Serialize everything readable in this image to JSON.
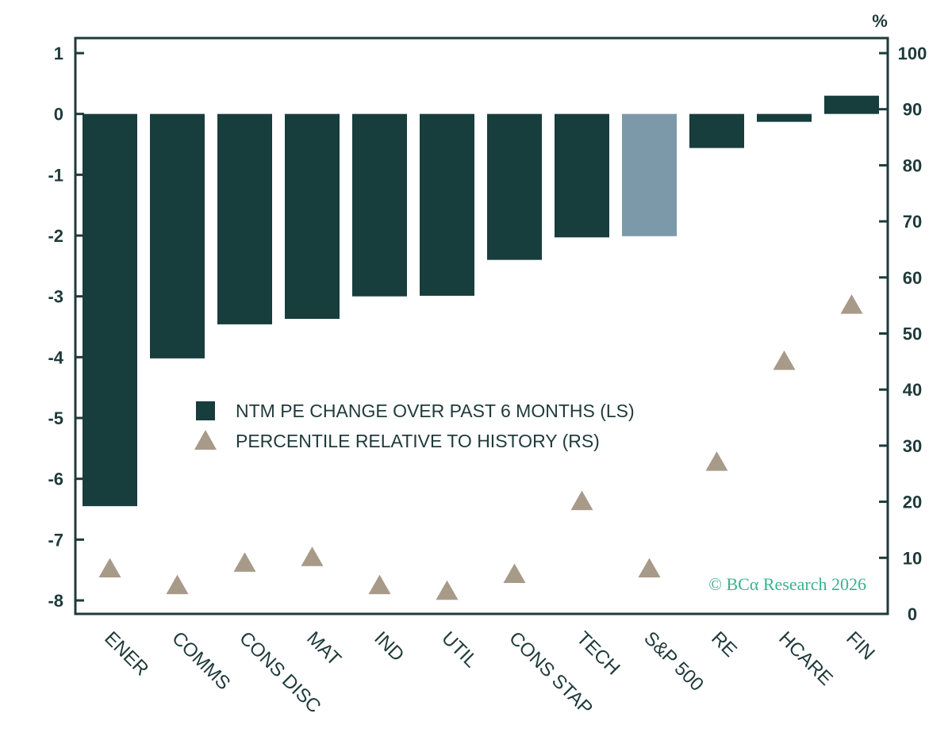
{
  "chart_data": {
    "type": "bar",
    "categories": [
      "ENER",
      "COMMS",
      "CONS DISC",
      "MAT",
      "IND",
      "UTIL",
      "CONS STAP",
      "TECH",
      "S&P 500",
      "RE",
      "HCARE",
      "FIN"
    ],
    "series": [
      {
        "name": "NTM PE CHANGE OVER PAST 6 MONTHS (LS)",
        "type": "bar",
        "axis": "left",
        "values": [
          -6.45,
          -4.02,
          -3.46,
          -3.37,
          -3.0,
          -2.99,
          -2.4,
          -2.03,
          -2.01,
          -0.56,
          -0.13,
          0.3
        ]
      },
      {
        "name": "PERCENTILE RELATIVE TO HISTORY (RS)",
        "type": "scatter",
        "marker": "triangle",
        "axis": "right",
        "values": [
          8,
          5,
          9,
          10,
          5,
          4,
          7,
          20,
          8,
          27,
          45,
          55
        ]
      }
    ],
    "left_axis": {
      "ylim": [
        -8,
        1
      ],
      "ticks": [
        "1",
        "0",
        "-1",
        "-2",
        "-3",
        "-4",
        "-5",
        "-6",
        "-7",
        "-8"
      ]
    },
    "right_axis": {
      "ylim": [
        0,
        100
      ],
      "unit": "%",
      "ticks": [
        "100",
        "90",
        "80",
        "70",
        "60",
        "50",
        "40",
        "30",
        "20",
        "10",
        "0"
      ]
    },
    "highlight_category": "S&P 500",
    "colors": {
      "bar": "#173d3d",
      "bar_highlight": "#7b99a9",
      "marker": "#a89a89",
      "axis": "#1f3a3a",
      "credit": "#3db38a"
    },
    "legend_position": "center",
    "grid": false
  },
  "credit": "© BCα Research 2026"
}
